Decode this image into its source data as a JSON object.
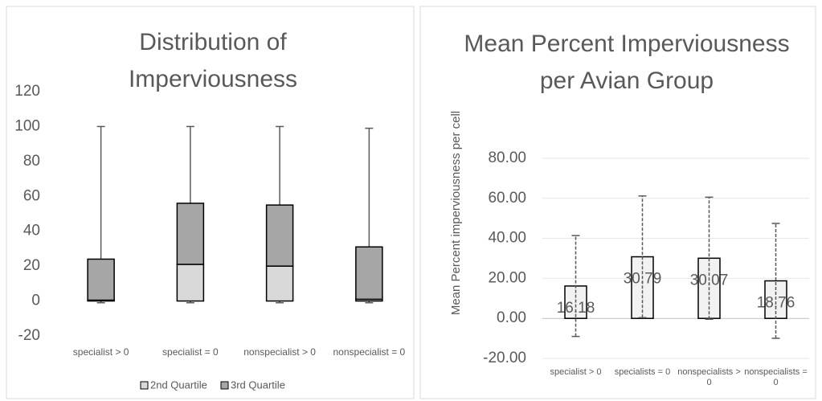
{
  "chart_data": [
    {
      "type": "box",
      "title": "Distribution of Imperviousness",
      "categories": [
        "specialist > 0",
        "specialist = 0",
        "nonspecialist > 0",
        "nonspecialist = 0"
      ],
      "q1": [
        0,
        0,
        0,
        0
      ],
      "series": [
        {
          "name": "2nd Quartile",
          "color": "#d9d9d9",
          "values": [
            0.5,
            21,
            20,
            1
          ]
        },
        {
          "name": "3rd Quartile",
          "color": "#a6a6a6",
          "values": [
            23.5,
            35,
            35,
            30
          ]
        }
      ],
      "min": [
        -1,
        -1,
        -1,
        -1
      ],
      "max": [
        100,
        100,
        100,
        99
      ],
      "ylim": [
        -20,
        120
      ],
      "yticks": [
        -20,
        0,
        20,
        40,
        60,
        80,
        100,
        120
      ],
      "grid": false,
      "legend": "bottom"
    },
    {
      "type": "bar",
      "title": "Mean Percent Imperviousness per Avian Group",
      "ylabel": "Mean Percent imperviousness per cell",
      "categories": [
        "specialist > 0",
        "specialists = 0",
        "nonspecialists > 0",
        "nonspecialists = 0"
      ],
      "values": [
        16.18,
        30.79,
        30.07,
        18.76
      ],
      "errors": [
        25.2,
        30.4,
        30.5,
        28.7
      ],
      "color": "#f2f2f2",
      "ylim": [
        -20,
        80
      ],
      "yticks": [
        {
          "value": -20,
          "label": "-20.00"
        },
        {
          "value": 0,
          "label": "0.00"
        },
        {
          "value": 20,
          "label": "20.00"
        },
        {
          "value": 40,
          "label": "40.00"
        },
        {
          "value": 60,
          "label": "60.00"
        },
        {
          "value": 80,
          "label": "80.00"
        }
      ],
      "grid": true
    }
  ]
}
